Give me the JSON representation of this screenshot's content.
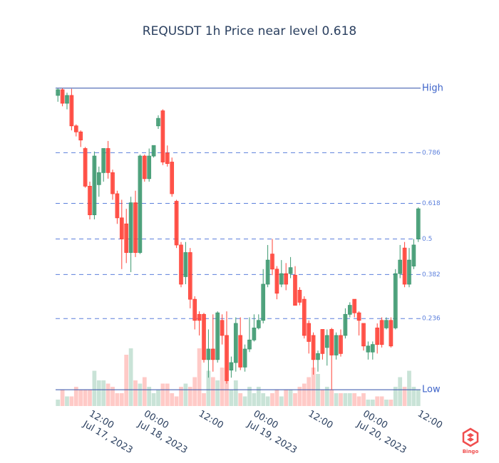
{
  "chart_data": {
    "type": "candlestick",
    "title": "REQUSDT 1h Price near level 0.618",
    "x": [
      "2023-07-17 05:00",
      "2023-07-17 06:00",
      "2023-07-17 07:00",
      "2023-07-17 08:00",
      "2023-07-17 09:00",
      "2023-07-17 10:00",
      "2023-07-17 11:00",
      "2023-07-17 12:00",
      "2023-07-17 13:00",
      "2023-07-17 14:00",
      "2023-07-17 15:00",
      "2023-07-17 16:00",
      "2023-07-17 17:00",
      "2023-07-17 18:00",
      "2023-07-17 19:00",
      "2023-07-17 20:00",
      "2023-07-17 21:00",
      "2023-07-17 22:00",
      "2023-07-17 23:00",
      "2023-07-18 00:00",
      "2023-07-18 01:00",
      "2023-07-18 02:00",
      "2023-07-18 03:00",
      "2023-07-18 04:00",
      "2023-07-18 05:00",
      "2023-07-18 06:00",
      "2023-07-18 07:00",
      "2023-07-18 08:00",
      "2023-07-18 09:00",
      "2023-07-18 10:00",
      "2023-07-18 11:00",
      "2023-07-18 12:00",
      "2023-07-18 13:00",
      "2023-07-18 14:00",
      "2023-07-18 15:00",
      "2023-07-18 16:00",
      "2023-07-18 17:00",
      "2023-07-18 18:00",
      "2023-07-18 19:00",
      "2023-07-18 20:00",
      "2023-07-18 21:00",
      "2023-07-18 22:00",
      "2023-07-18 23:00",
      "2023-07-19 00:00",
      "2023-07-19 01:00",
      "2023-07-19 02:00",
      "2023-07-19 03:00",
      "2023-07-19 04:00",
      "2023-07-19 05:00",
      "2023-07-19 06:00",
      "2023-07-19 07:00",
      "2023-07-19 08:00",
      "2023-07-19 09:00",
      "2023-07-19 10:00",
      "2023-07-19 11:00",
      "2023-07-19 12:00",
      "2023-07-19 13:00",
      "2023-07-19 14:00",
      "2023-07-19 15:00",
      "2023-07-19 16:00",
      "2023-07-19 17:00",
      "2023-07-19 18:00",
      "2023-07-19 19:00",
      "2023-07-19 20:00",
      "2023-07-19 21:00",
      "2023-07-19 22:00",
      "2023-07-19 23:00",
      "2023-07-20 00:00",
      "2023-07-20 01:00",
      "2023-07-20 02:00",
      "2023-07-20 03:00",
      "2023-07-20 04:00",
      "2023-07-20 05:00",
      "2023-07-20 06:00",
      "2023-07-20 07:00",
      "2023-07-20 08:00",
      "2023-07-20 09:00",
      "2023-07-20 10:00",
      "2023-07-20 11:00",
      "2023-07-20 12:00"
    ],
    "open": [
      0.976,
      0.995,
      0.95,
      0.976,
      0.875,
      0.855,
      0.8,
      0.675,
      0.58,
      0.68,
      0.72,
      0.8,
      0.72,
      0.65,
      0.57,
      0.55,
      0.455,
      0.62,
      0.455,
      0.775,
      0.7,
      0.775,
      0.875,
      0.925,
      0.785,
      0.755,
      0.625,
      0.48,
      0.375,
      0.455,
      0.3,
      0.25,
      0.25,
      0.1,
      0.135,
      0.1,
      0.23,
      0.18,
      0.065,
      0.09,
      0.18,
      0.075,
      0.135,
      0.165,
      0.205,
      0.23,
      0.35,
      0.45,
      0.4,
      0.35,
      0.385,
      0.385,
      0.38,
      0.33,
      0.3,
      0.22,
      0.18,
      0.1,
      0.2,
      0.14,
      0.2,
      0.115,
      0.18,
      0.18,
      0.25,
      0.3,
      0.255,
      0.22,
      0.125,
      0.125,
      0.205,
      0.23,
      0.205,
      0.23,
      0.205,
      0.385,
      0.47,
      0.35,
      0.41,
      0.5
    ],
    "high": [
      1.0,
      1.0,
      0.985,
      0.998,
      0.88,
      0.86,
      0.805,
      0.69,
      0.79,
      0.74,
      0.8,
      0.825,
      0.73,
      0.66,
      0.63,
      0.6,
      0.64,
      0.66,
      0.78,
      0.78,
      0.8,
      0.81,
      0.91,
      0.93,
      0.81,
      0.77,
      0.63,
      0.49,
      0.49,
      0.47,
      0.31,
      0.26,
      0.255,
      0.2,
      0.25,
      0.26,
      0.25,
      0.26,
      0.11,
      0.24,
      0.24,
      0.15,
      0.24,
      0.25,
      0.25,
      0.4,
      0.48,
      0.5,
      0.41,
      0.43,
      0.42,
      0.44,
      0.41,
      0.34,
      0.31,
      0.23,
      0.19,
      0.13,
      0.2,
      0.2,
      0.205,
      0.19,
      0.2,
      0.27,
      0.29,
      0.3,
      0.26,
      0.22,
      0.16,
      0.16,
      0.22,
      0.24,
      0.24,
      0.24,
      0.4,
      0.48,
      0.49,
      0.47,
      0.5,
      0.605
    ],
    "low": [
      0.955,
      0.94,
      0.93,
      0.86,
      0.84,
      0.805,
      0.67,
      0.565,
      0.565,
      0.64,
      0.69,
      0.7,
      0.63,
      0.55,
      0.4,
      0.42,
      0.39,
      0.44,
      0.45,
      0.69,
      0.69,
      0.77,
      0.865,
      0.745,
      0.74,
      0.64,
      0.47,
      0.34,
      0.35,
      0.27,
      0.2,
      0.18,
      0.09,
      0.04,
      0.06,
      0.09,
      0.15,
      0.02,
      0.04,
      0.06,
      0.065,
      0.06,
      0.125,
      0.16,
      0.2,
      0.22,
      0.34,
      0.38,
      0.3,
      0.34,
      0.33,
      0.37,
      0.28,
      0.28,
      0.17,
      0.12,
      0.05,
      0.06,
      0.1,
      0.08,
      0,
      0.1,
      0.11,
      0.17,
      0.24,
      0.24,
      0.18,
      0.13,
      0.1,
      0.1,
      0.12,
      0.14,
      0.2,
      0.14,
      0.2,
      0.37,
      0.34,
      0.34,
      0.4,
      0.49
    ],
    "close": [
      0.995,
      0.95,
      0.976,
      0.875,
      0.855,
      0.828,
      0.675,
      0.58,
      0.775,
      0.72,
      0.8,
      0.72,
      0.65,
      0.57,
      0.5,
      0.455,
      0.62,
      0.455,
      0.775,
      0.7,
      0.775,
      0.81,
      0.9,
      0.755,
      0.75,
      0.65,
      0.48,
      0.35,
      0.455,
      0.3,
      0.23,
      0.23,
      0.1,
      0.135,
      0.1,
      0.255,
      0.18,
      0.03,
      0.09,
      0.22,
      0.075,
      0.135,
      0.165,
      0.205,
      0.23,
      0.35,
      0.43,
      0.4,
      0.32,
      0.385,
      0.35,
      0.405,
      0.28,
      0.29,
      0.18,
      0.16,
      0.1,
      0.12,
      0.12,
      0.18,
      0.115,
      0.18,
      0.12,
      0.25,
      0.28,
      0.255,
      0.23,
      0.145,
      0.145,
      0.15,
      0.15,
      0.15,
      0.23,
      0.145,
      0.385,
      0.43,
      0.35,
      0.43,
      0.48,
      0.6
    ],
    "volume": [
      2,
      5,
      3,
      3,
      6,
      5,
      5,
      5,
      11,
      8,
      8,
      7,
      6,
      4,
      4,
      16,
      18,
      8,
      7,
      9,
      6,
      4,
      5,
      7,
      7,
      4,
      3,
      6,
      7,
      6,
      9,
      18,
      4,
      11,
      9,
      8,
      12,
      8,
      5,
      8,
      4,
      3,
      6,
      4,
      6,
      4,
      3,
      4,
      5,
      3,
      5,
      5,
      4,
      6,
      7,
      9,
      12,
      10,
      5,
      6,
      5,
      4,
      4,
      4,
      4,
      4,
      3,
      4,
      2,
      2,
      3,
      3,
      2,
      2,
      6,
      9,
      6,
      11,
      6,
      5
    ],
    "increasing_color": "#3d9970",
    "decreasing_color": "#ff4136",
    "xlim": [
      "2023-07-17 04:30",
      "2023-07-20 12:30"
    ],
    "xticks": [
      {
        "value": "2023-07-17 12:00",
        "label": [
          "12:00",
          "Jul 17, 2023"
        ]
      },
      {
        "value": "2023-07-18 00:00",
        "label": [
          "00:00",
          "Jul 18, 2023"
        ]
      },
      {
        "value": "2023-07-18 12:00",
        "label": [
          "12:00"
        ]
      },
      {
        "value": "2023-07-19 00:00",
        "label": [
          "00:00",
          "Jul 19, 2023"
        ]
      },
      {
        "value": "2023-07-19 12:00",
        "label": [
          "12:00"
        ]
      },
      {
        "value": "2023-07-20 00:00",
        "label": [
          "00:00",
          "Jul 20, 2023"
        ]
      },
      {
        "value": "2023-07-20 12:00",
        "label": [
          "12:00"
        ]
      }
    ],
    "ylim": [
      -0.054,
      1.009
    ],
    "y2lim": [
      0,
      100
    ],
    "levels": [
      {
        "name": "High",
        "value": 1,
        "dash": false
      },
      {
        "value": 0.786,
        "dash": true
      },
      {
        "value": 0.618,
        "dash": true
      },
      {
        "value": 0.5,
        "dash": true
      },
      {
        "value": 0.382,
        "dash": true
      },
      {
        "value": 0.236,
        "dash": true
      },
      {
        "name": "Low",
        "value": 0,
        "dash": false
      }
    ],
    "level_color": "#5b7fdc",
    "extreme_color": "#2f4ea8",
    "watermark": "Bingo"
  }
}
